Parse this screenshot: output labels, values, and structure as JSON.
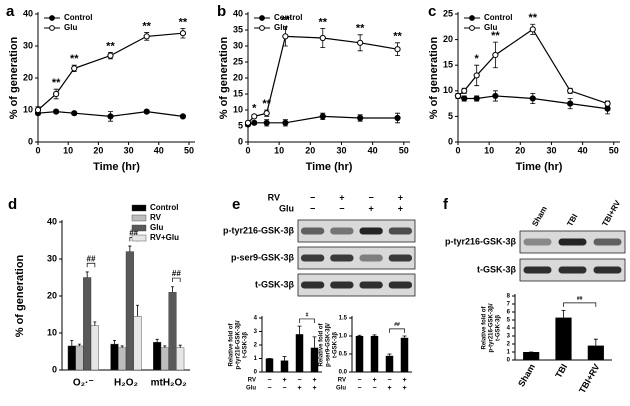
{
  "chart_data": [
    {
      "type": "line",
      "panel": "a",
      "xlabel": "Time (hr)",
      "ylabel": "% of generation",
      "x": [
        0,
        6,
        12,
        24,
        36,
        48
      ],
      "xlim": [
        0,
        52
      ],
      "xticks": [
        0,
        10,
        20,
        30,
        40,
        50
      ],
      "ylim": [
        0,
        40
      ],
      "yticks": [
        0,
        10,
        20,
        30,
        40
      ],
      "series": [
        {
          "name": "Control",
          "color": "#000000",
          "marker": "filled",
          "values": [
            9,
            9.5,
            9,
            8,
            9.5,
            8
          ],
          "errors": [
            0.5,
            0.5,
            0.5,
            1.5,
            0.5,
            0.5
          ]
        },
        {
          "name": "Glu",
          "color": "#000000",
          "marker": "open",
          "values": [
            10,
            15,
            23,
            27,
            33,
            34
          ],
          "errors": [
            1,
            1.5,
            1,
            1,
            1.2,
            1.5
          ]
        }
      ],
      "annotations": [
        {
          "x": 6,
          "text": "**"
        },
        {
          "x": 12,
          "text": "**"
        },
        {
          "x": 24,
          "text": "**"
        },
        {
          "x": 36,
          "text": "**"
        },
        {
          "x": 48,
          "text": "**"
        }
      ]
    },
    {
      "type": "line",
      "panel": "b",
      "xlabel": "Time (hr)",
      "ylabel": "% of generation",
      "x": [
        0,
        2,
        6,
        12,
        24,
        36,
        48
      ],
      "xlim": [
        0,
        52
      ],
      "xticks": [
        0,
        10,
        20,
        30,
        40,
        50
      ],
      "ylim": [
        0,
        40
      ],
      "yticks": [
        0,
        5,
        10,
        15,
        20,
        25,
        30,
        35,
        40
      ],
      "series": [
        {
          "name": "Control",
          "color": "#000000",
          "marker": "filled",
          "values": [
            5.5,
            6,
            6,
            6,
            8,
            7.5,
            7.5
          ],
          "errors": [
            0.5,
            0.5,
            1,
            1,
            1,
            1,
            1.5
          ]
        },
        {
          "name": "Glu",
          "color": "#000000",
          "marker": "open",
          "values": [
            6,
            8,
            9,
            33,
            32.5,
            31,
            29
          ],
          "errors": [
            0.5,
            0.5,
            1,
            3,
            3,
            2.5,
            2
          ]
        }
      ],
      "annotations": [
        {
          "x": 2,
          "text": "*"
        },
        {
          "x": 6,
          "text": "**"
        },
        {
          "x": 12,
          "text": "**"
        },
        {
          "x": 24,
          "text": "**"
        },
        {
          "x": 36,
          "text": "**"
        },
        {
          "x": 48,
          "text": "**"
        }
      ]
    },
    {
      "type": "line",
      "panel": "c",
      "xlabel": "Time (hr)",
      "ylabel": "% of generation",
      "x": [
        0,
        2,
        6,
        12,
        24,
        36,
        48
      ],
      "xlim": [
        0,
        52
      ],
      "xticks": [
        0,
        10,
        20,
        30,
        40,
        50
      ],
      "ylim": [
        0,
        25
      ],
      "yticks": [
        0,
        5,
        10,
        15,
        20,
        25
      ],
      "series": [
        {
          "name": "Control",
          "color": "#000000",
          "marker": "filled",
          "values": [
            9,
            8.5,
            8.5,
            9,
            8.5,
            7.5,
            6.5
          ],
          "errors": [
            0.5,
            0.5,
            0.5,
            1,
            1,
            1,
            1
          ]
        },
        {
          "name": "Glu",
          "color": "#000000",
          "marker": "open",
          "values": [
            9,
            10,
            13,
            17,
            22,
            10,
            7.5
          ],
          "errors": [
            0.5,
            0.5,
            2,
            2.5,
            1,
            0.5,
            0.5
          ]
        }
      ],
      "annotations": [
        {
          "x": 6,
          "text": "*"
        },
        {
          "x": 12,
          "text": "**"
        },
        {
          "x": 24,
          "text": "**"
        }
      ]
    },
    {
      "type": "bar",
      "panel": "d",
      "ylabel": "% of generation",
      "categories": [
        "O₂·⁻",
        "H₂O₂",
        "mtH₂O₂"
      ],
      "ylim": [
        0,
        40
      ],
      "yticks": [
        0,
        10,
        20,
        30,
        40
      ],
      "series": [
        {
          "name": "Control",
          "color": "#000000",
          "values": [
            6.5,
            7,
            7.5
          ],
          "errors": [
            1.5,
            1,
            0.8
          ]
        },
        {
          "name": "RV",
          "color": "#bdbdbd",
          "values": [
            6.5,
            6,
            6
          ],
          "errors": [
            0.5,
            0.5,
            0.5
          ]
        },
        {
          "name": "Glu",
          "color": "#595959",
          "values": [
            25,
            32,
            21
          ],
          "errors": [
            1.5,
            1.5,
            1.5
          ]
        },
        {
          "name": "RV+Glu",
          "color": "#e6e6e6",
          "values": [
            12,
            14.5,
            6
          ],
          "errors": [
            1,
            3,
            0.7
          ]
        }
      ],
      "annotations": [
        "##",
        "##",
        "##"
      ]
    },
    {
      "type": "bar",
      "ylabel": [
        "Relative fold of",
        "p-tyr216-GSK-3β/",
        "t-GSK-3β"
      ],
      "categories": [
        null,
        null,
        null,
        null
      ],
      "color": "#000000",
      "values": [
        1,
        0.85,
        2.8,
        1.8
      ],
      "errors": [
        0,
        0.3,
        0.6,
        0.8
      ],
      "ylim": [
        0,
        4
      ],
      "yticks": [
        0,
        1,
        2,
        3,
        4
      ],
      "treatments": [
        {
          "name": "RV",
          "signs": [
            "−",
            "+",
            "−",
            "+"
          ]
        },
        {
          "name": "Glu",
          "signs": [
            "−",
            "−",
            "+",
            "+"
          ]
        }
      ],
      "annotation": "#"
    },
    {
      "type": "bar",
      "ylabel": [
        "Relative fold of",
        "p-ser9-GSK-3β/",
        "t-GSK-3β"
      ],
      "categories": [
        null,
        null,
        null,
        null
      ],
      "color": "#000000",
      "values": [
        1,
        1,
        0.45,
        0.95
      ],
      "errors": [
        0.02,
        0.03,
        0.05,
        0.05
      ],
      "ylim": [
        0,
        1.5
      ],
      "yticks": [
        {
          "value": 0,
          "label": "0.0"
        },
        {
          "value": 0.5,
          "label": "0.5"
        },
        {
          "value": 1,
          "label": "1.0"
        },
        {
          "value": 1.5,
          "label": "1.5"
        }
      ],
      "treatments": [
        {
          "name": "RV",
          "signs": [
            "−",
            "+",
            "−",
            "+"
          ]
        },
        {
          "name": "Glu",
          "signs": [
            "−",
            "−",
            "+",
            "+"
          ]
        }
      ],
      "annotation": "##"
    },
    {
      "type": "bar",
      "ylabel": [
        "Relative fold of",
        "p-tyr216-GSK-3β/",
        "t-GSK-3β"
      ],
      "categories": [
        "Sham",
        "TBI",
        "TBI+RV"
      ],
      "color": "#000000",
      "values": [
        1,
        5.3,
        1.8
      ],
      "errors": [
        0,
        0.9,
        0.8
      ],
      "ylim": [
        0,
        8
      ],
      "yticks": [
        0,
        1,
        2,
        3,
        4,
        5,
        6,
        7,
        8
      ],
      "annotation": "##"
    }
  ],
  "blots": {
    "e": {
      "panel": "e",
      "columns": [
        {
          "name": "RV",
          "signs": [
            "−",
            "+",
            "−",
            "+"
          ]
        },
        {
          "name": "Glu",
          "signs": [
            "−",
            "−",
            "+",
            "+"
          ]
        }
      ],
      "rows": [
        "p-tyr216-GSK-3β",
        "p-ser9-GSK-3β",
        "t-GSK-3β"
      ]
    },
    "f": {
      "panel": "f",
      "columns": [
        "Sham",
        "TBI",
        "TBI+RV"
      ],
      "rows": [
        "p-tyr216-GSK-3β",
        "t-GSK-3β"
      ]
    }
  }
}
